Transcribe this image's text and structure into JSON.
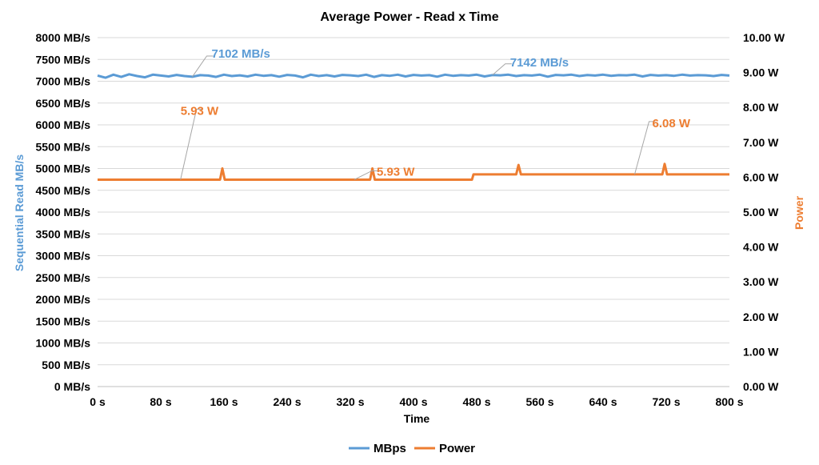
{
  "chart_data": {
    "type": "line",
    "title": "Average Power - Read x Time",
    "xlabel": "Time",
    "ylabel": "Sequential Read MB/s",
    "y2label": "Power",
    "xlim": [
      0,
      800
    ],
    "ylim": [
      0,
      8000
    ],
    "y2lim": [
      0,
      10
    ],
    "x_ticks": [
      "0 s",
      "80 s",
      "160 s",
      "240 s",
      "320 s",
      "400 s",
      "480 s",
      "560 s",
      "640 s",
      "720 s",
      "800 s"
    ],
    "y_ticks": [
      "0 MB/s",
      "500 MB/s",
      "1000 MB/s",
      "1500 MB/s",
      "2000 MB/s",
      "2500 MB/s",
      "3000 MB/s",
      "3500 MB/s",
      "4000 MB/s",
      "4500 MB/s",
      "5000 MB/s",
      "5500 MB/s",
      "6000 MB/s",
      "6500 MB/s",
      "7000 MB/s",
      "7500 MB/s",
      "8000 MB/s"
    ],
    "y2_ticks": [
      "0.00 W",
      "1.00 W",
      "2.00 W",
      "3.00 W",
      "4.00 W",
      "5.00 W",
      "6.00 W",
      "7.00 W",
      "8.00 W",
      "9.00 W",
      "10.00 W"
    ],
    "grid": true,
    "legend_position": "bottom",
    "series": [
      {
        "name": "MBps",
        "axis": "left",
        "color": "#5B9BD5",
        "x": [
          0,
          10,
          20,
          30,
          40,
          50,
          60,
          70,
          80,
          90,
          100,
          110,
          120,
          130,
          140,
          150,
          160,
          170,
          180,
          190,
          200,
          210,
          220,
          230,
          240,
          250,
          260,
          270,
          280,
          290,
          300,
          310,
          320,
          330,
          340,
          350,
          360,
          370,
          380,
          390,
          400,
          410,
          420,
          430,
          440,
          450,
          460,
          470,
          480,
          490,
          500,
          510,
          520,
          530,
          540,
          550,
          560,
          570,
          580,
          590,
          600,
          610,
          620,
          630,
          640,
          650,
          660,
          670,
          680,
          690,
          700,
          710,
          720,
          730,
          740,
          750,
          760,
          770,
          780,
          790,
          800
        ],
        "y": [
          7130,
          7080,
          7150,
          7100,
          7160,
          7120,
          7090,
          7150,
          7130,
          7110,
          7145,
          7120,
          7102,
          7140,
          7130,
          7100,
          7150,
          7120,
          7135,
          7110,
          7150,
          7125,
          7140,
          7105,
          7145,
          7130,
          7090,
          7150,
          7120,
          7140,
          7110,
          7145,
          7135,
          7120,
          7150,
          7100,
          7140,
          7125,
          7150,
          7110,
          7145,
          7130,
          7140,
          7105,
          7150,
          7125,
          7140,
          7130,
          7150,
          7110,
          7142,
          7135,
          7150,
          7120,
          7140,
          7130,
          7150,
          7105,
          7145,
          7135,
          7150,
          7120,
          7142,
          7130,
          7150,
          7125,
          7140,
          7135,
          7150,
          7110,
          7145,
          7130,
          7140,
          7125,
          7150,
          7130,
          7140,
          7135,
          7120,
          7145,
          7130
        ]
      },
      {
        "name": "Power",
        "axis": "right",
        "color": "#ED7D31",
        "x": [
          0,
          150,
          155,
          158,
          161,
          164,
          340,
          345,
          348,
          351,
          354,
          474,
          476,
          530,
          533,
          536,
          539,
          715,
          718,
          721,
          724,
          800
        ],
        "y": [
          5.93,
          5.93,
          5.93,
          6.25,
          5.93,
          5.93,
          5.93,
          5.93,
          6.25,
          5.93,
          5.93,
          5.93,
          6.08,
          6.08,
          6.35,
          6.08,
          6.08,
          6.08,
          6.38,
          6.08,
          6.08,
          6.08
        ]
      }
    ],
    "annotations": [
      {
        "text": "7102 MB/s",
        "series": "MBps",
        "x": 120,
        "y": 7102
      },
      {
        "text": "7142 MB/s",
        "series": "MBps",
        "x": 500,
        "y": 7142
      },
      {
        "text": "5.93 W",
        "series": "Power",
        "x": 105,
        "y": 5.93
      },
      {
        "text": "5.93 W",
        "series": "Power",
        "x": 325,
        "y": 5.93
      },
      {
        "text": "6.08 W",
        "series": "Power",
        "x": 680,
        "y": 6.08
      }
    ]
  }
}
